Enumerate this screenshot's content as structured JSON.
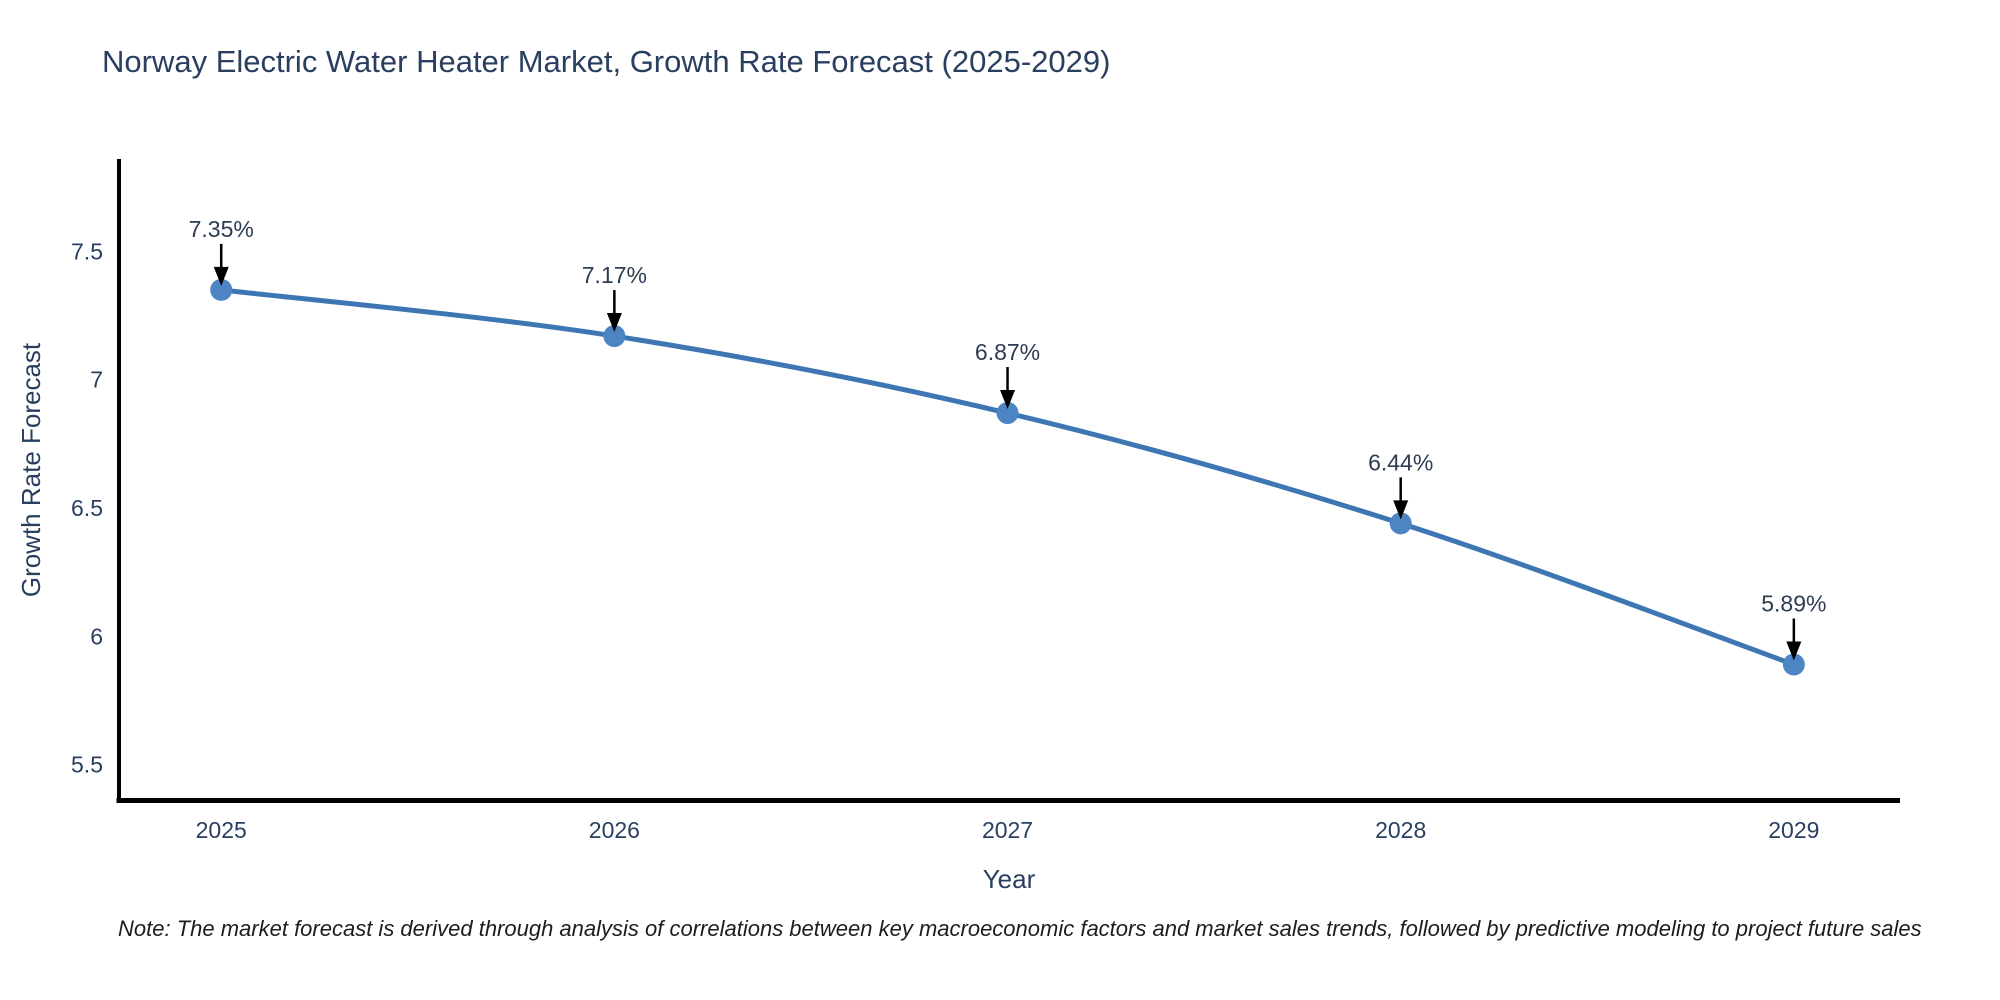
{
  "title": "Norway Electric Water Heater Market, Growth Rate Forecast (2025-2029)",
  "note": "Note: The market forecast is derived through analysis of correlations between key macroeconomic factors and market sales trends, followed by predictive modeling to project future sales",
  "chart_data": {
    "type": "line",
    "title": "Norway Electric Water Heater Market, Growth Rate Forecast (2025-2029)",
    "x": [
      2025,
      2026,
      2027,
      2028,
      2029
    ],
    "values": [
      7.35,
      7.17,
      6.87,
      6.44,
      5.89
    ],
    "point_labels": [
      "7.35%",
      "7.17%",
      "6.87%",
      "6.44%",
      "5.89%"
    ],
    "xlabel": "Year",
    "ylabel": "Growth Rate Forecast",
    "x_ticks": [
      "2025",
      "2026",
      "2027",
      "2028",
      "2029"
    ],
    "y_ticks": [
      "5.5",
      "6",
      "6.5",
      "7",
      "7.5"
    ],
    "xlim": [
      2024.74,
      2029.27
    ],
    "ylim": [
      5.36,
      7.86
    ],
    "grid": false,
    "legend": "none",
    "line_color": "#3d76b3",
    "marker_color": "#4d84c4",
    "arrow_color": "#000000",
    "axis_color": "#000000",
    "text_color": "#2a3f5f"
  }
}
